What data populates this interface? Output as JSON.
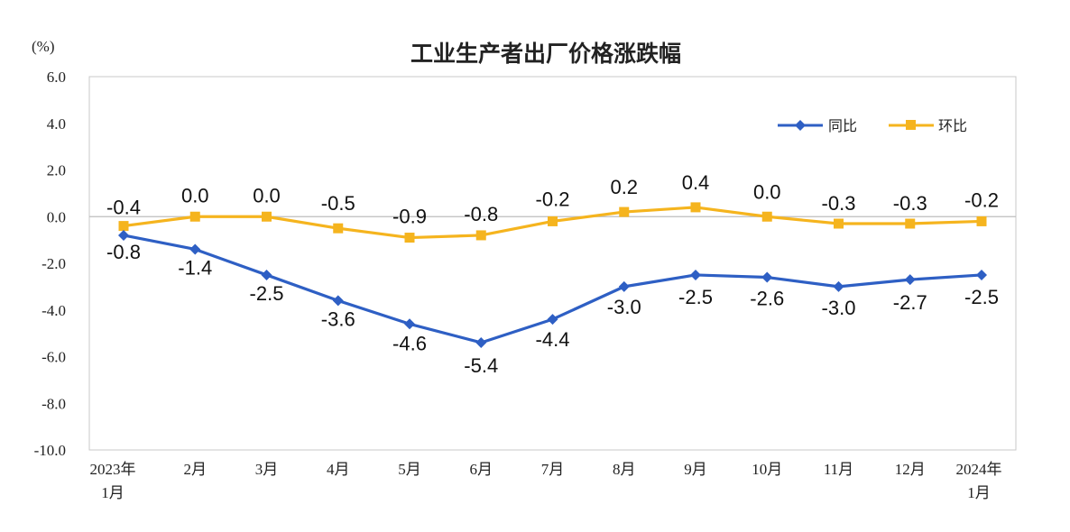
{
  "chart_data": {
    "type": "line",
    "title": "工业生产者出厂价格涨跌幅",
    "y_unit": "(%)",
    "ylim": [
      -10.0,
      6.0
    ],
    "yticks": [
      "6.0",
      "4.0",
      "2.0",
      "0.0",
      "-2.0",
      "-4.0",
      "-6.0",
      "-8.0",
      "-10.0"
    ],
    "categories": [
      [
        "2023年",
        "1月"
      ],
      [
        "2月"
      ],
      [
        "3月"
      ],
      [
        "4月"
      ],
      [
        "5月"
      ],
      [
        "6月"
      ],
      [
        "7月"
      ],
      [
        "8月"
      ],
      [
        "9月"
      ],
      [
        "10月"
      ],
      [
        "11月"
      ],
      [
        "12月"
      ],
      [
        "2024年",
        "1月"
      ]
    ],
    "legend_position": "top-right",
    "grid": false,
    "series": [
      {
        "name": "同比",
        "color": "#2E5FC4",
        "marker": "diamond",
        "values": [
          -0.8,
          -1.4,
          -2.5,
          -3.6,
          -4.6,
          -5.4,
          -4.4,
          -3.0,
          -2.5,
          -2.6,
          -3.0,
          -2.7,
          -2.5
        ],
        "labels": [
          "-0.8",
          "-1.4",
          "-2.5",
          "-3.6",
          "-4.6",
          "-5.4",
          "-4.4",
          "-3.0",
          "-2.5",
          "-2.6",
          "-3.0",
          "-2.7",
          "-2.5"
        ]
      },
      {
        "name": "环比",
        "color": "#F5B41E",
        "marker": "square",
        "values": [
          -0.4,
          0.0,
          0.0,
          -0.5,
          -0.9,
          -0.8,
          -0.2,
          0.2,
          0.4,
          0.0,
          -0.3,
          -0.3,
          -0.2
        ],
        "labels": [
          "-0.4",
          "0.0",
          "0.0",
          "-0.5",
          "-0.9",
          "-0.8",
          "-0.2",
          "0.2",
          "0.4",
          "0.0",
          "-0.3",
          "-0.3",
          "-0.2"
        ]
      }
    ]
  }
}
